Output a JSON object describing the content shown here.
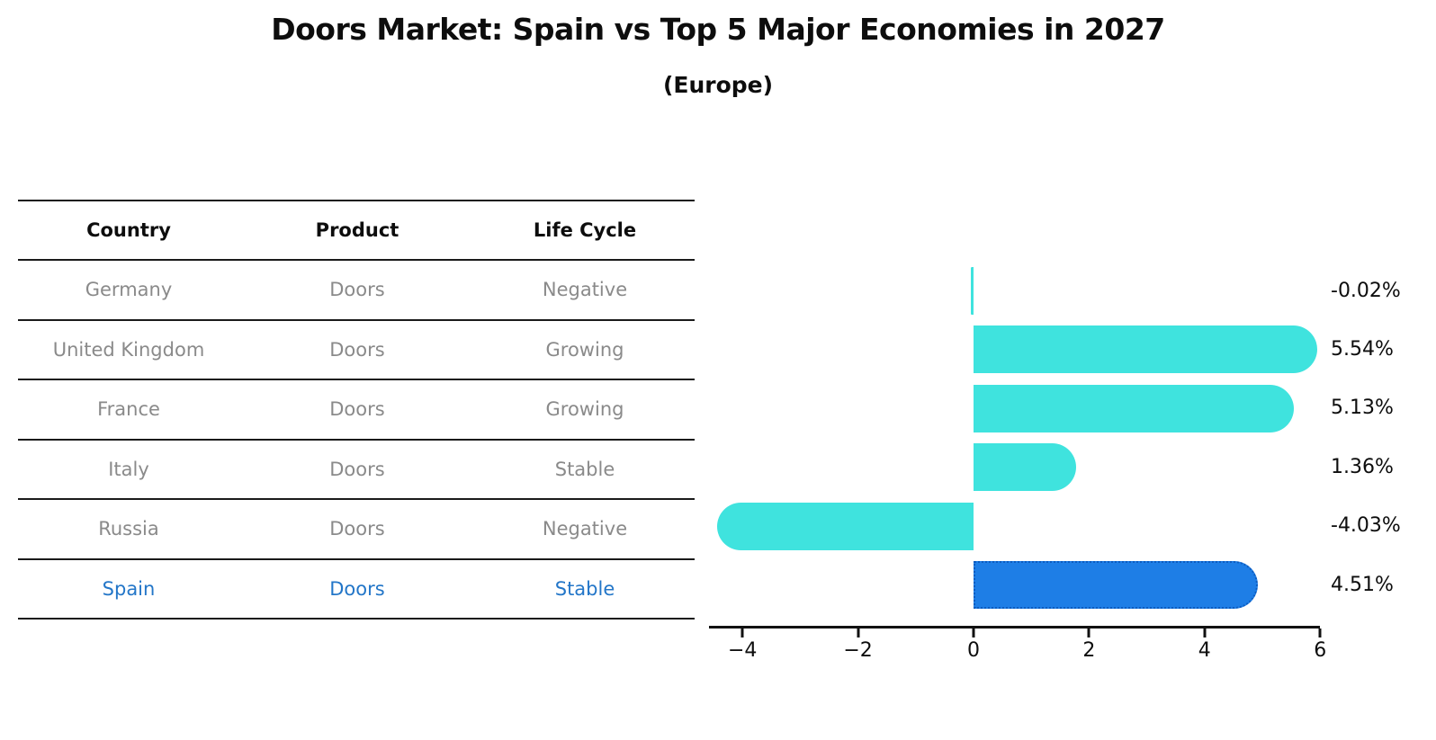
{
  "title": "Doors Market: Spain vs Top 5 Major Economies in 2027",
  "subtitle": "(Europe)",
  "table": {
    "headers": [
      "Country",
      "Product",
      "Life Cycle"
    ],
    "rows": [
      {
        "country": "Germany",
        "product": "Doors",
        "life_cycle": "Negative",
        "highlight": false
      },
      {
        "country": "United Kingdom",
        "product": "Doors",
        "life_cycle": "Growing",
        "highlight": false
      },
      {
        "country": "France",
        "product": "Doors",
        "life_cycle": "Growing",
        "highlight": false
      },
      {
        "country": "Italy",
        "product": "Doors",
        "life_cycle": "Stable",
        "highlight": false
      },
      {
        "country": "Russia",
        "product": "Doors",
        "life_cycle": "Negative",
        "highlight": false
      },
      {
        "country": "Spain",
        "product": "Doors",
        "life_cycle": "Stable",
        "highlight": true
      }
    ]
  },
  "chart_data": {
    "type": "bar",
    "orientation": "horizontal",
    "title": "Doors Market: Spain vs Top 5 Major Economies in 2027 (Europe)",
    "categories": [
      "Germany",
      "United Kingdom",
      "France",
      "Italy",
      "Russia",
      "Spain"
    ],
    "values": [
      -0.02,
      5.54,
      5.13,
      1.36,
      -4.03,
      4.51
    ],
    "value_labels": [
      "-0.02%",
      "5.54%",
      "5.13%",
      "1.36%",
      "-4.03%",
      "4.51%"
    ],
    "unit": "%",
    "x_ticks": [
      -4,
      -2,
      0,
      2,
      4,
      6
    ],
    "x_tick_labels": [
      "−4",
      "−2",
      "0",
      "2",
      "4",
      "6"
    ],
    "xlim": [
      -4.58,
      6
    ],
    "grid": false,
    "legend": false,
    "bar_color": "#3FE3DE",
    "highlight_color": "#1E7EE6",
    "highlight_border_color": "#0D5CC0",
    "highlight_index": 5,
    "highlight_text_color": "#2376C8",
    "row_text_color": "#8A8A8A"
  }
}
